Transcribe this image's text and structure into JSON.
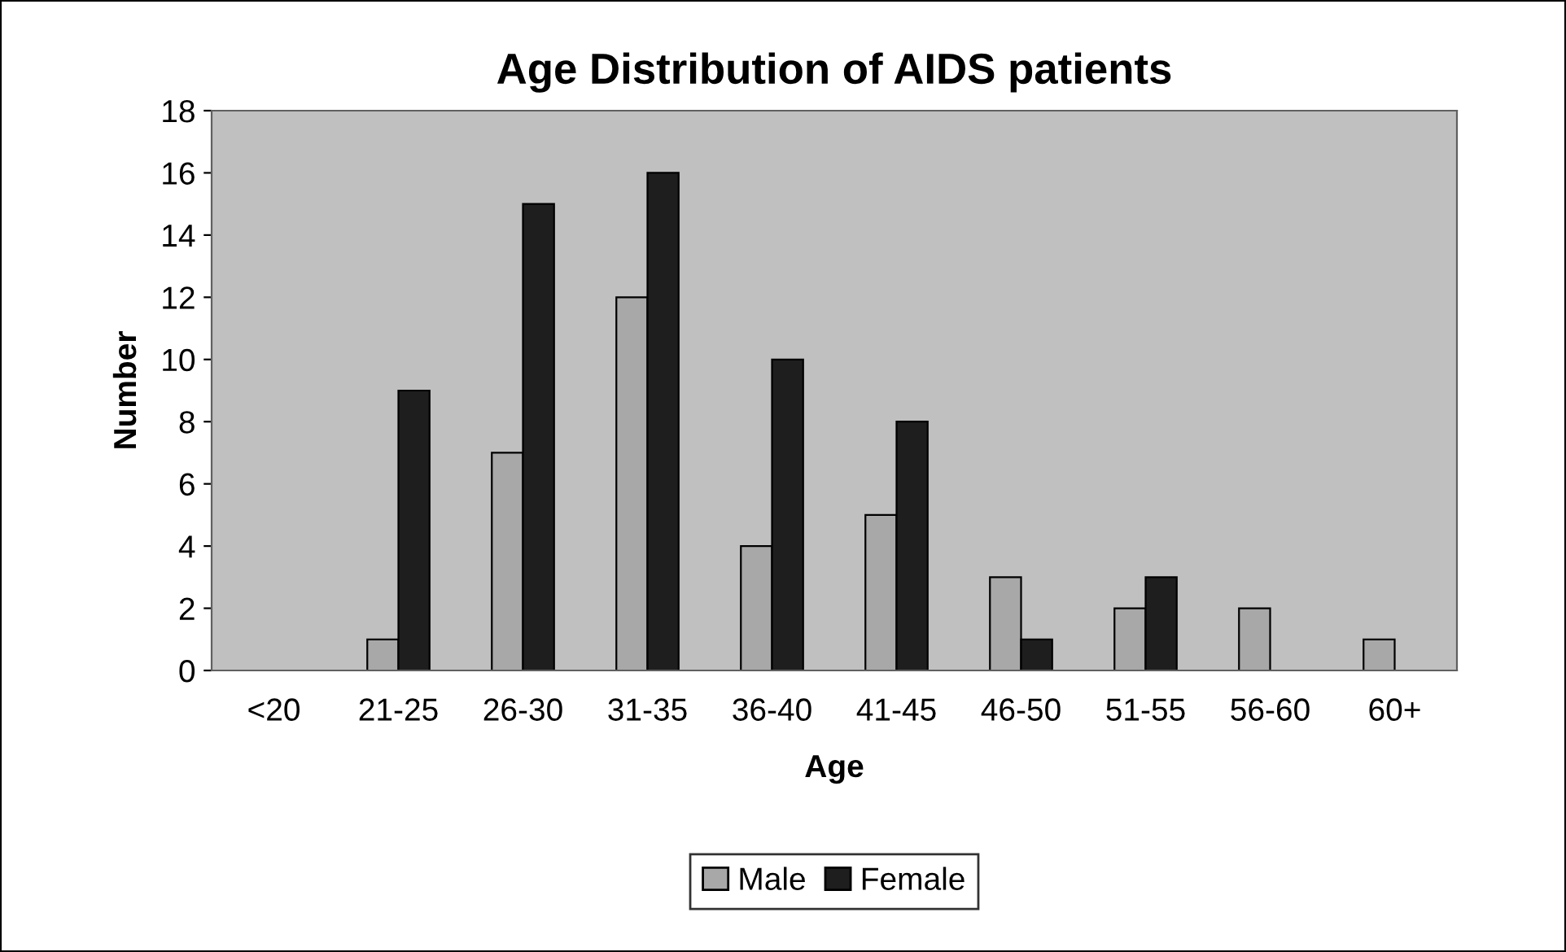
{
  "chart_data": {
    "type": "bar",
    "title": "Age Distribution of AIDS patients",
    "xlabel": "Age",
    "ylabel": "Number",
    "categories": [
      "<20",
      "21-25",
      "26-30",
      "31-35",
      "36-40",
      "41-45",
      "46-50",
      "51-55",
      "56-60",
      "60+"
    ],
    "series": [
      {
        "name": "Male",
        "color": "#a8a8a8",
        "values": [
          0,
          1,
          7,
          12,
          4,
          5,
          3,
          2,
          2,
          1
        ]
      },
      {
        "name": "Female",
        "color": "#1e1e1e",
        "values": [
          0,
          9,
          15,
          16,
          10,
          8,
          1,
          3,
          0,
          0
        ]
      }
    ],
    "ylim": [
      0,
      18
    ],
    "yticks": [
      0,
      2,
      4,
      6,
      8,
      10,
      12,
      14,
      16,
      18
    ],
    "grid": false,
    "legend": "bottom"
  }
}
